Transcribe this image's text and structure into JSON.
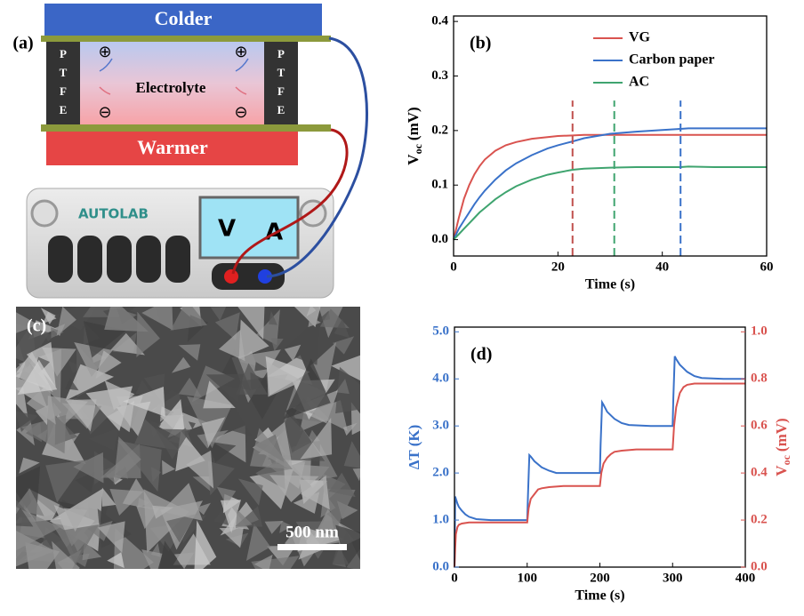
{
  "diagram": {
    "label": "(a)",
    "colder": "Colder",
    "warmer": "Warmer",
    "electrolyte": "Electrolyte",
    "ptfe_left": [
      "P",
      "T",
      "F",
      "E"
    ],
    "ptfe_right": [
      "P",
      "T",
      "F",
      "E"
    ],
    "device": "AUTOLAB",
    "volt": "V",
    "amp": "A"
  },
  "image": {
    "label": "(c)",
    "scale_bar": "500 nm"
  },
  "chart_data": [
    {
      "type": "line",
      "label": "(b)",
      "xlabel": "Time (s)",
      "ylabel": {
        "main": "V",
        "sub": "oc",
        "unit": "(mV)"
      },
      "xlim": [
        0,
        60
      ],
      "xticks": [
        0,
        20,
        40,
        60
      ],
      "ylim": [
        -0.03,
        0.41
      ],
      "yticks": [
        {
          "value": 0,
          "label": "0.0"
        },
        0.1,
        0.2,
        0.3,
        0.4
      ],
      "series": [
        {
          "name": "VG",
          "color": "#d9534f",
          "x": [
            0,
            1,
            2,
            3,
            4,
            5,
            6,
            8,
            10,
            12,
            15,
            18,
            20,
            22.8,
            25,
            30,
            35,
            40,
            43.5,
            45,
            50,
            55,
            60
          ],
          "values": [
            0,
            0.04,
            0.075,
            0.1,
            0.12,
            0.135,
            0.147,
            0.163,
            0.173,
            0.179,
            0.185,
            0.188,
            0.19,
            0.191,
            0.192,
            0.192,
            0.192,
            0.192,
            0.192,
            0.192,
            0.192,
            0.192,
            0.192
          ]
        },
        {
          "name": "Carbon paper",
          "color": "#3a72c9",
          "x": [
            0,
            1,
            2,
            3,
            4,
            5,
            6,
            8,
            10,
            12,
            15,
            18,
            20,
            22.8,
            25,
            30,
            35,
            40,
            43.5,
            45,
            50,
            55,
            60
          ],
          "values": [
            0,
            0.02,
            0.035,
            0.05,
            0.065,
            0.078,
            0.09,
            0.11,
            0.127,
            0.14,
            0.155,
            0.167,
            0.173,
            0.18,
            0.186,
            0.194,
            0.198,
            0.201,
            0.203,
            0.204,
            0.204,
            0.204,
            0.204
          ]
        },
        {
          "name": "AC",
          "color": "#3fa46f",
          "x": [
            0,
            1,
            2,
            3,
            4,
            5,
            6,
            8,
            10,
            12,
            15,
            18,
            20,
            22.8,
            25,
            30,
            35,
            40,
            43.5,
            45,
            50,
            55,
            60
          ],
          "values": [
            0,
            0.01,
            0.02,
            0.03,
            0.04,
            0.05,
            0.058,
            0.074,
            0.087,
            0.098,
            0.11,
            0.119,
            0.123,
            0.128,
            0.13,
            0.132,
            0.133,
            0.133,
            0.133,
            0.134,
            0.133,
            0.133,
            0.133
          ]
        }
      ],
      "markers": [
        {
          "x": 22.8,
          "y": 0.255,
          "color": "#c0504d"
        },
        {
          "x": 30.8,
          "y": 0.255,
          "color": "#3fa46f"
        },
        {
          "x": 43.5,
          "y": 0.255,
          "color": "#3a72c9"
        }
      ]
    },
    {
      "type": "line",
      "label": "(d)",
      "xlabel": "Time (s)",
      "ylabel": {
        "main": "ΔT (K)",
        "color": "#3a72c9"
      },
      "y2label": {
        "main": "V",
        "sub": "oc",
        "unit": "(mV)",
        "color": "#d9534f"
      },
      "xlim": [
        0,
        400
      ],
      "xticks": [
        0,
        100,
        200,
        300,
        400
      ],
      "ylim": [
        0,
        5.1
      ],
      "yticks": [
        {
          "value": 0,
          "label": "0.0"
        },
        {
          "value": 1,
          "label": "1.0"
        },
        {
          "value": 2,
          "label": "2.0"
        },
        {
          "value": 3,
          "label": "3.0"
        },
        {
          "value": 4,
          "label": "4.0"
        },
        {
          "value": 5,
          "label": "5.0"
        }
      ],
      "y2lim": [
        0,
        1.02
      ],
      "y2ticks": [
        {
          "value": 0,
          "label": "0.0"
        },
        0.2,
        0.4,
        0.6,
        0.8,
        {
          "value": 1,
          "label": "1.0"
        }
      ],
      "series": [
        {
          "color": "#3a72c9",
          "x": [
            0,
            1,
            2,
            4,
            6,
            10,
            15,
            20,
            30,
            50,
            80,
            100,
            101,
            103,
            105,
            110,
            120,
            130,
            140,
            170,
            200,
            201,
            203,
            205,
            210,
            220,
            230,
            240,
            270,
            300,
            301,
            303,
            305,
            310,
            320,
            330,
            340,
            370,
            400
          ],
          "values": [
            0,
            1.5,
            1.45,
            1.35,
            1.28,
            1.2,
            1.12,
            1.07,
            1.02,
            1,
            1,
            1,
            1.5,
            2.38,
            2.35,
            2.25,
            2.12,
            2.05,
            2.0,
            2.0,
            2.0,
            2.6,
            3.5,
            3.45,
            3.3,
            3.15,
            3.06,
            3.02,
            3.0,
            3.0,
            3.6,
            4.48,
            4.42,
            4.3,
            4.15,
            4.06,
            4.02,
            4.0,
            4.0
          ]
        },
        {
          "color": "#d9534f",
          "axis": "y2",
          "x": [
            0,
            1,
            2,
            4,
            6,
            10,
            20,
            50,
            100,
            102,
            105,
            110,
            115,
            120,
            130,
            150,
            200,
            202,
            205,
            210,
            215,
            220,
            230,
            250,
            300,
            302,
            305,
            310,
            315,
            320,
            330,
            350,
            400
          ],
          "values": [
            0,
            0.08,
            0.14,
            0.17,
            0.18,
            0.185,
            0.19,
            0.19,
            0.19,
            0.25,
            0.29,
            0.31,
            0.33,
            0.335,
            0.34,
            0.345,
            0.345,
            0.4,
            0.44,
            0.465,
            0.48,
            0.49,
            0.495,
            0.5,
            0.5,
            0.6,
            0.68,
            0.74,
            0.765,
            0.775,
            0.78,
            0.78,
            0.78
          ]
        }
      ]
    }
  ]
}
